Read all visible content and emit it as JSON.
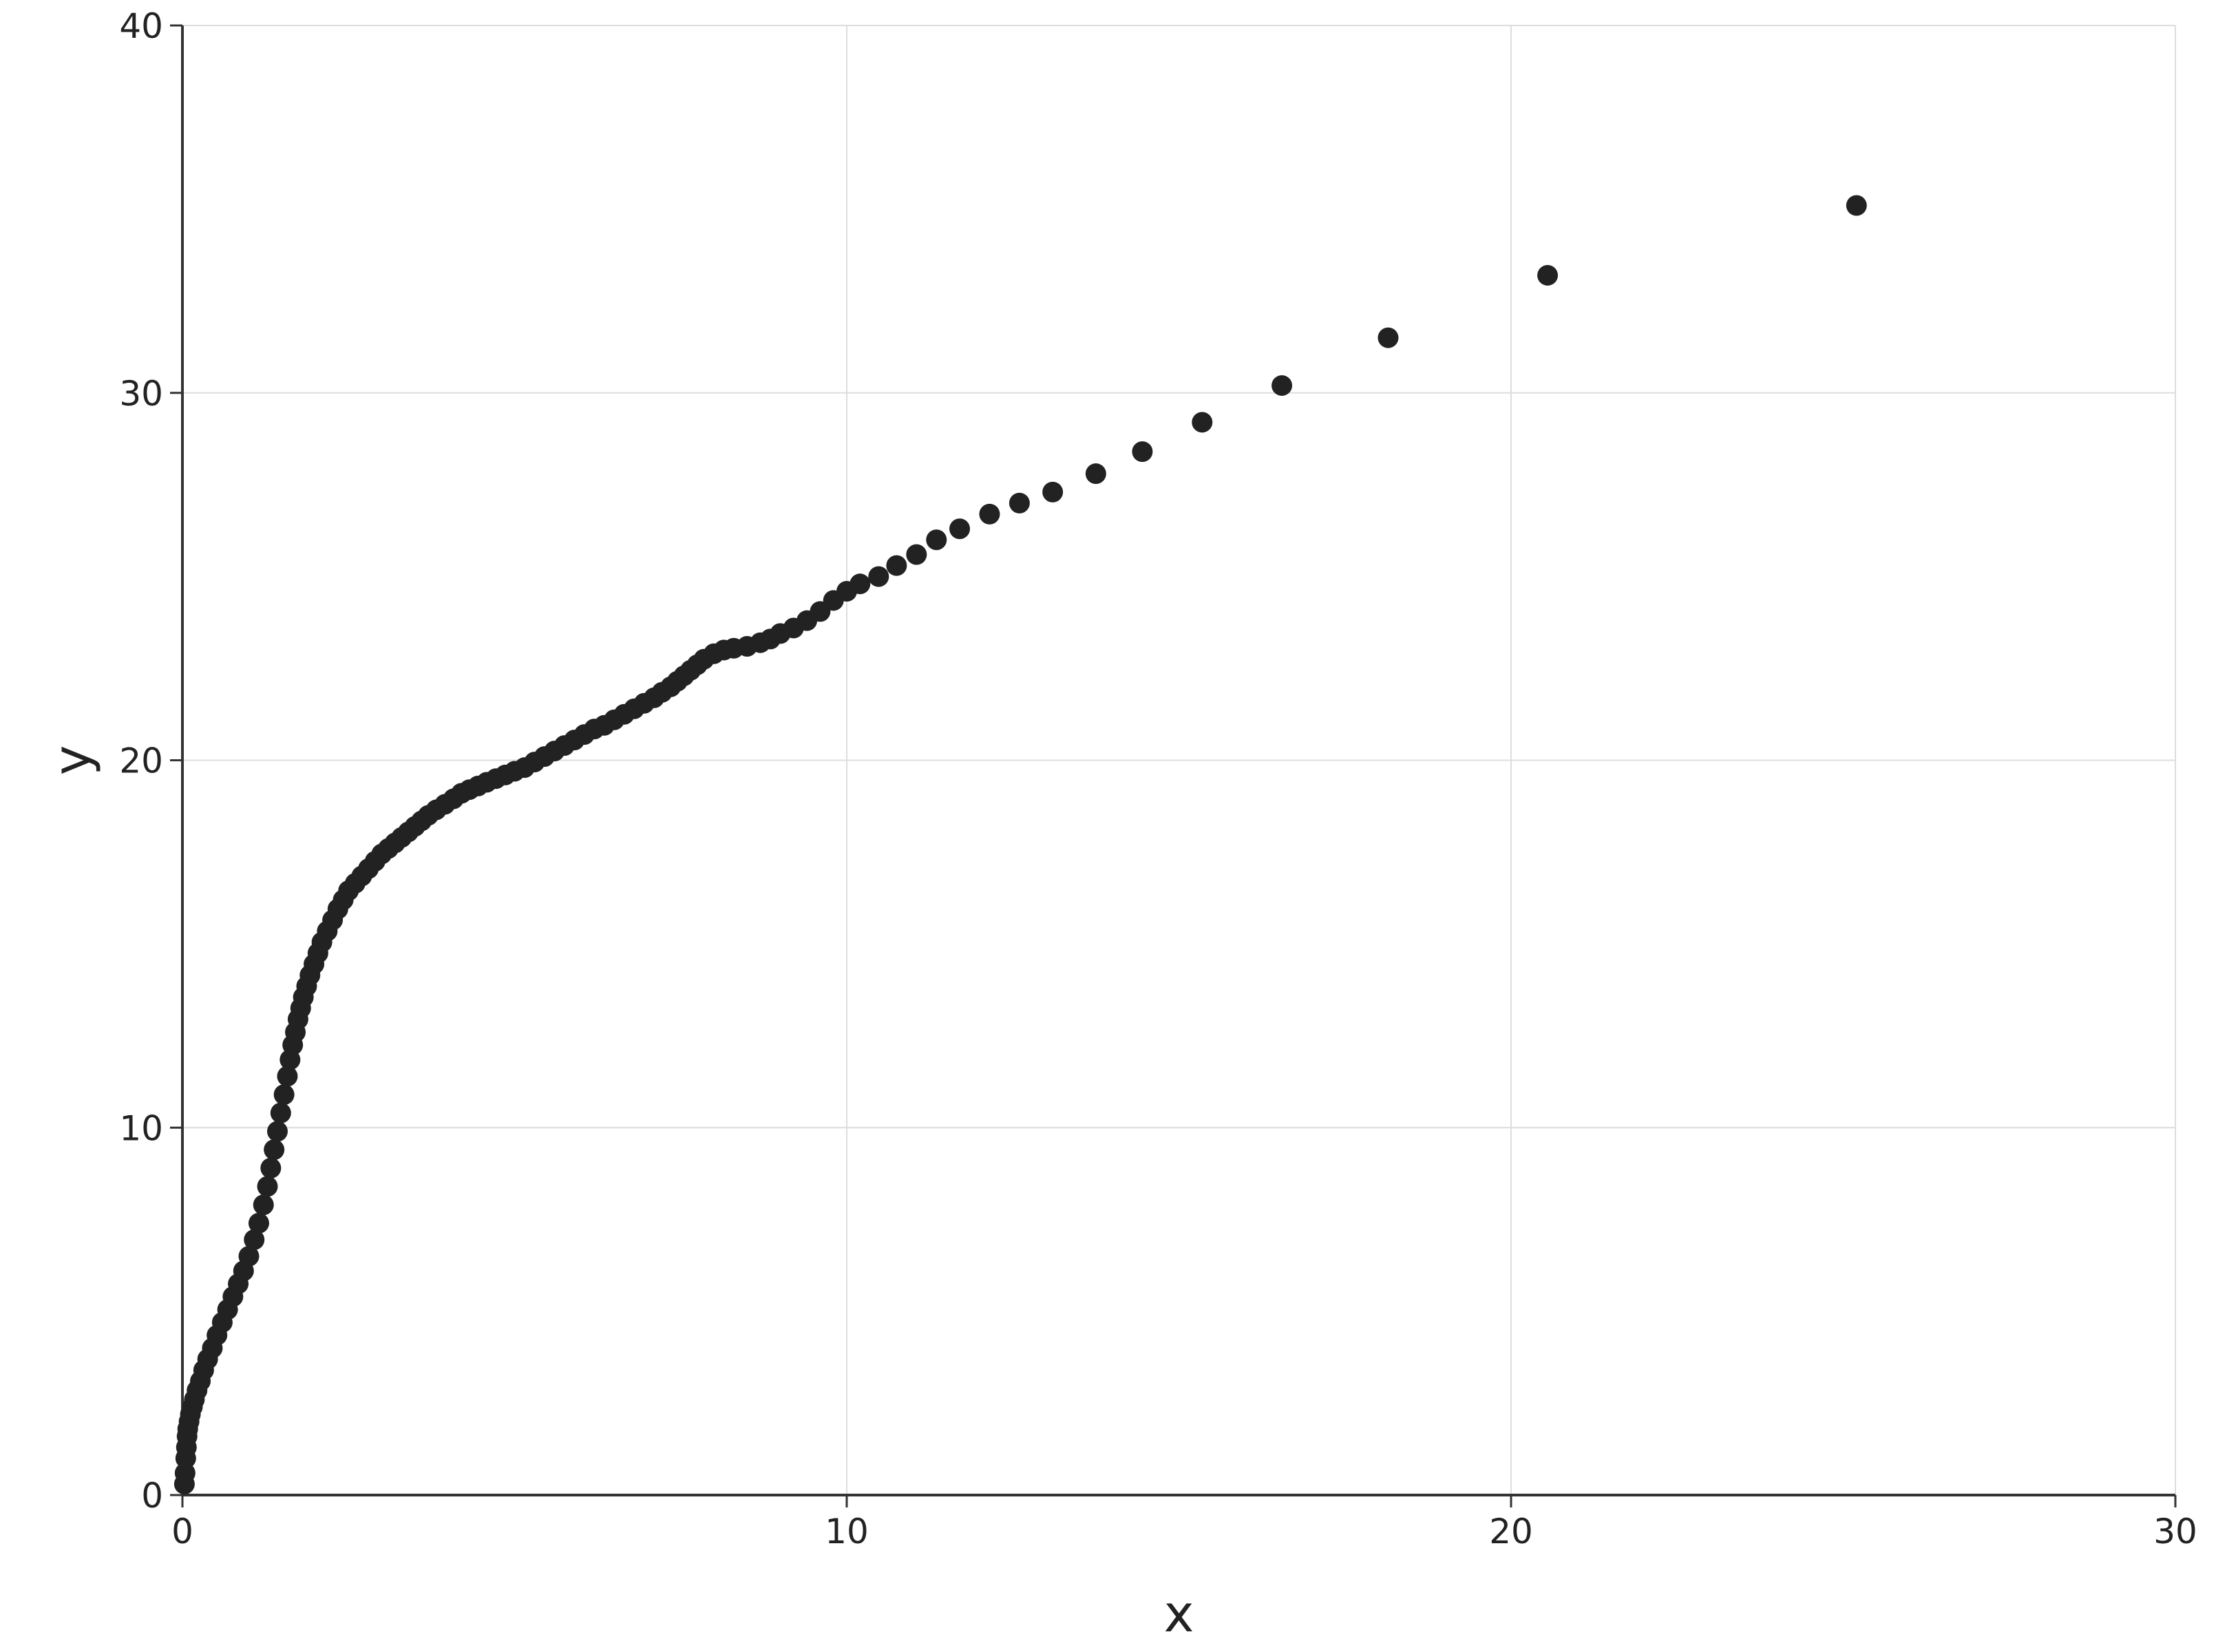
{
  "colors": {
    "marker": "#222222",
    "grid": "#dddddd",
    "axis": "#333333",
    "background": "#ffffff"
  },
  "chart_data": {
    "type": "scatter",
    "title": "",
    "xlabel": "x",
    "ylabel": "y",
    "xlim": [
      0,
      30
    ],
    "ylim": [
      0,
      40
    ],
    "xticks": [
      "0",
      "10",
      "20",
      "30"
    ],
    "yticks": [
      "0",
      "10",
      "20",
      "30",
      "40"
    ],
    "grid": true,
    "legend": "none",
    "series": [
      {
        "x": [
          0.03,
          0.04,
          0.05,
          0.06,
          0.07,
          0.08,
          0.1,
          0.12,
          0.15,
          0.18,
          0.22,
          0.27,
          0.32,
          0.38,
          0.45,
          0.52,
          0.6,
          0.68,
          0.76,
          0.84,
          0.92,
          1.0,
          1.08,
          1.15,
          1.22,
          1.28,
          1.33,
          1.38,
          1.43,
          1.48,
          1.53,
          1.58,
          1.62,
          1.66,
          1.7,
          1.74,
          1.78,
          1.82,
          1.87,
          1.92,
          1.98,
          2.04,
          2.1,
          2.18,
          2.26,
          2.34,
          2.42,
          2.5,
          2.6,
          2.7,
          2.8,
          2.9,
          3.0,
          3.1,
          3.2,
          3.3,
          3.4,
          3.5,
          3.6,
          3.7,
          3.82,
          3.95,
          4.08,
          4.2,
          4.32,
          4.45,
          4.58,
          4.72,
          4.86,
          5.0,
          5.15,
          5.3,
          5.45,
          5.6,
          5.75,
          5.9,
          6.05,
          6.2,
          6.35,
          6.5,
          6.65,
          6.8,
          6.95,
          7.1,
          7.22,
          7.35,
          7.45,
          7.55,
          7.65,
          7.75,
          7.85,
          8.0,
          8.15,
          8.3,
          8.5,
          8.7,
          8.85,
          9.0,
          9.2,
          9.4,
          9.6,
          9.8,
          10.0,
          10.2,
          10.48,
          10.75,
          11.05,
          11.35,
          11.7,
          12.15,
          12.6,
          13.1,
          13.75,
          14.45,
          15.35,
          16.55,
          18.15,
          20.55,
          25.2
        ],
        "y": [
          0.3,
          0.6,
          1.0,
          1.3,
          1.6,
          1.8,
          2.0,
          2.2,
          2.4,
          2.6,
          2.85,
          3.1,
          3.4,
          3.7,
          4.0,
          4.35,
          4.7,
          5.05,
          5.4,
          5.75,
          6.1,
          6.5,
          6.95,
          7.4,
          7.9,
          8.4,
          8.9,
          9.4,
          9.9,
          10.4,
          10.9,
          11.4,
          11.85,
          12.25,
          12.6,
          12.95,
          13.25,
          13.55,
          13.85,
          14.15,
          14.45,
          14.75,
          15.05,
          15.35,
          15.65,
          15.95,
          16.2,
          16.45,
          16.65,
          16.85,
          17.05,
          17.25,
          17.45,
          17.6,
          17.75,
          17.9,
          18.05,
          18.2,
          18.35,
          18.5,
          18.65,
          18.8,
          18.95,
          19.1,
          19.2,
          19.3,
          19.4,
          19.5,
          19.6,
          19.7,
          19.8,
          19.95,
          20.1,
          20.25,
          20.4,
          20.55,
          20.7,
          20.85,
          20.95,
          21.1,
          21.25,
          21.4,
          21.55,
          21.7,
          21.85,
          22.0,
          22.15,
          22.3,
          22.45,
          22.6,
          22.75,
          22.9,
          23.0,
          23.05,
          23.1,
          23.2,
          23.3,
          23.45,
          23.6,
          23.8,
          24.05,
          24.35,
          24.6,
          24.8,
          25.0,
          25.3,
          25.6,
          26.0,
          26.3,
          26.7,
          27.0,
          27.3,
          27.8,
          28.4,
          29.2,
          30.2,
          31.5,
          33.2,
          35.1
        ]
      }
    ]
  }
}
